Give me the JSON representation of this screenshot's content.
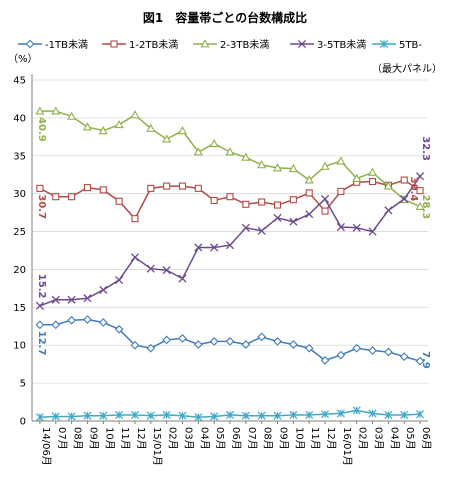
{
  "chart_data": {
    "type": "line",
    "title": "図1　容量帯ごとの台数構成比",
    "ylabel": "（%）",
    "note": "（最大パネル）",
    "ylim": [
      0,
      45
    ],
    "yticks": [
      0,
      5,
      10,
      15,
      20,
      25,
      30,
      35,
      40,
      45
    ],
    "grid": "horizontal",
    "legend_position": "top",
    "categories": [
      "14/06月",
      "07月",
      "08月",
      "09月",
      "10月",
      "11月",
      "12月",
      "15/01月",
      "02月",
      "03月",
      "04月",
      "05月",
      "06月",
      "07月",
      "08月",
      "09月",
      "10月",
      "11月",
      "12月",
      "16/01月",
      "02月",
      "03月",
      "04月",
      "05月",
      "06月"
    ],
    "series": [
      {
        "name": "-1TB未満",
        "color": "#3f7bbf",
        "marker": "diamond",
        "values": [
          12.7,
          12.7,
          13.3,
          13.4,
          13.0,
          12.1,
          10.0,
          9.6,
          10.7,
          10.9,
          10.1,
          10.5,
          10.5,
          10.1,
          11.1,
          10.5,
          10.1,
          9.6,
          8.0,
          8.7,
          9.6,
          9.3,
          9.1,
          8.5,
          7.9
        ],
        "label_start": "12.7",
        "label_end": "7.9"
      },
      {
        "name": "1-2TB未満",
        "color": "#b44a47",
        "marker": "square",
        "values": [
          30.7,
          29.6,
          29.6,
          30.8,
          30.5,
          29.0,
          26.7,
          30.7,
          31.0,
          31.0,
          30.7,
          29.1,
          29.6,
          28.6,
          28.9,
          28.5,
          29.2,
          30.1,
          27.7,
          30.3,
          31.5,
          31.6,
          31.1,
          31.8,
          30.4
        ],
        "label_start": "30.7",
        "label_end": "30.4"
      },
      {
        "name": "2-3TB未満",
        "color": "#8fb14a",
        "marker": "triangle",
        "values": [
          40.9,
          40.9,
          40.2,
          38.8,
          38.3,
          39.1,
          40.4,
          38.6,
          37.2,
          38.3,
          35.5,
          36.6,
          35.5,
          34.8,
          33.8,
          33.4,
          33.3,
          31.8,
          33.6,
          34.3,
          32.0,
          32.8,
          31.0,
          29.2,
          28.3
        ],
        "label_start": "40.9",
        "label_end": "28.3"
      },
      {
        "name": "3-5TB未満",
        "color": "#6d4a90",
        "marker": "x",
        "values": [
          15.2,
          16.0,
          16.0,
          16.2,
          17.3,
          18.6,
          21.6,
          20.1,
          19.9,
          18.8,
          22.9,
          22.9,
          23.2,
          25.5,
          25.1,
          26.8,
          26.3,
          27.3,
          29.3,
          25.6,
          25.5,
          25.0,
          27.8,
          29.3,
          32.3
        ],
        "label_start": "15.2",
        "label_end": "32.3"
      },
      {
        "name": "5TB-",
        "color": "#3fa9c9",
        "marker": "asterisk",
        "values": [
          0.5,
          0.6,
          0.6,
          0.7,
          0.7,
          0.8,
          0.8,
          0.7,
          0.8,
          0.7,
          0.5,
          0.6,
          0.8,
          0.7,
          0.7,
          0.7,
          0.8,
          0.8,
          0.9,
          1.0,
          1.4,
          1.0,
          0.8,
          0.8,
          0.9
        ]
      }
    ]
  }
}
